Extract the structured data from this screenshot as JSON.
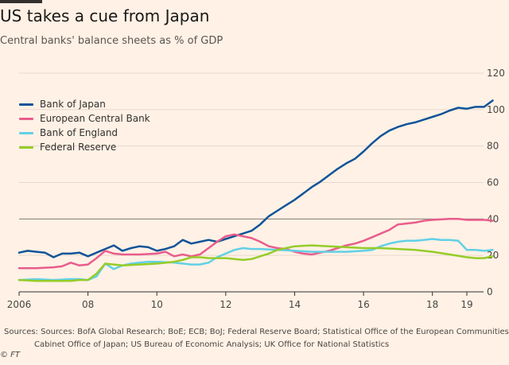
{
  "title": "US takes a cue from Japan",
  "subtitle": "Central banks' balance sheets as % of GDP",
  "sources": "Sources: Sources: BofA Global Research; BoE; ECB; BoJ; Federal Reserve Board; Statistical Office of the European Communities;\nCabinet Office of Japan; US Bureau of Economic Analysis; UK Office for National Statistics",
  "credit": "© FT",
  "colors": {
    "background": "#fff1e5",
    "grid": "#e6d9ce",
    "axis": "#33302e"
  },
  "chart_data": {
    "type": "line",
    "title": "US takes a cue from Japan",
    "subtitle": "Central banks' balance sheets as % of GDP",
    "xlabel": "",
    "ylabel": "",
    "xlim": [
      2006,
      2019.3
    ],
    "ylim": [
      0,
      120
    ],
    "x_ticks": [
      2006,
      2008,
      2010,
      2012,
      2014,
      2016,
      2018,
      2019
    ],
    "x_tick_labels": [
      "2006",
      "08",
      "10",
      "12",
      "14",
      "16",
      "18",
      "19"
    ],
    "y_ticks": [
      0,
      20,
      40,
      60,
      80,
      100,
      120
    ],
    "y_tick_labels": [
      "0",
      "20",
      "40",
      "60",
      "80",
      "100",
      "120"
    ],
    "y_axis_position": "right",
    "grid": true,
    "legend_position": "top-left",
    "series": [
      {
        "name": "Bank of Japan",
        "color": "#0f5499",
        "points": [
          [
            2006.0,
            21.5
          ],
          [
            2006.25,
            22.5
          ],
          [
            2006.5,
            22.0
          ],
          [
            2006.75,
            21.5
          ],
          [
            2007.0,
            19.0
          ],
          [
            2007.25,
            21.0
          ],
          [
            2007.5,
            21.0
          ],
          [
            2007.75,
            21.5
          ],
          [
            2008.0,
            19.5
          ],
          [
            2008.25,
            21.5
          ],
          [
            2008.5,
            23.5
          ],
          [
            2008.75,
            25.5
          ],
          [
            2009.0,
            22.5
          ],
          [
            2009.25,
            24.0
          ],
          [
            2009.5,
            25.0
          ],
          [
            2009.75,
            24.5
          ],
          [
            2010.0,
            22.5
          ],
          [
            2010.25,
            23.5
          ],
          [
            2010.5,
            25.0
          ],
          [
            2010.75,
            28.5
          ],
          [
            2011.0,
            26.5
          ],
          [
            2011.25,
            27.5
          ],
          [
            2011.5,
            28.5
          ],
          [
            2011.75,
            27.5
          ],
          [
            2012.0,
            29.0
          ],
          [
            2012.25,
            30.5
          ],
          [
            2012.5,
            32.0
          ],
          [
            2012.75,
            33.5
          ],
          [
            2013.0,
            37.0
          ],
          [
            2013.25,
            41.5
          ],
          [
            2013.5,
            44.5
          ],
          [
            2013.75,
            47.5
          ],
          [
            2014.0,
            50.5
          ],
          [
            2014.25,
            54.0
          ],
          [
            2014.5,
            57.5
          ],
          [
            2014.75,
            60.5
          ],
          [
            2015.0,
            64.0
          ],
          [
            2015.25,
            67.5
          ],
          [
            2015.5,
            70.5
          ],
          [
            2015.75,
            73.0
          ],
          [
            2016.0,
            77.0
          ],
          [
            2016.25,
            81.5
          ],
          [
            2016.5,
            85.5
          ],
          [
            2016.75,
            88.5
          ],
          [
            2017.0,
            90.5
          ],
          [
            2017.25,
            92.0
          ],
          [
            2017.5,
            93.0
          ],
          [
            2017.75,
            94.5
          ],
          [
            2018.0,
            96.0
          ],
          [
            2018.25,
            97.5
          ],
          [
            2018.5,
            99.5
          ],
          [
            2018.75,
            101.0
          ],
          [
            2019.0,
            100.5
          ],
          [
            2019.25,
            101.5
          ],
          [
            2019.5,
            101.5
          ],
          [
            2019.75,
            105.0
          ]
        ]
      },
      {
        "name": "European Central Bank",
        "color": "#e95d8c",
        "points": [
          [
            2006.0,
            13.0
          ],
          [
            2006.5,
            13.0
          ],
          [
            2007.0,
            13.5
          ],
          [
            2007.25,
            14.0
          ],
          [
            2007.5,
            16.0
          ],
          [
            2007.75,
            14.5
          ],
          [
            2008.0,
            15.0
          ],
          [
            2008.25,
            18.5
          ],
          [
            2008.5,
            22.5
          ],
          [
            2008.75,
            21.0
          ],
          [
            2009.0,
            20.5
          ],
          [
            2009.5,
            20.5
          ],
          [
            2010.0,
            21.0
          ],
          [
            2010.25,
            22.0
          ],
          [
            2010.5,
            19.5
          ],
          [
            2010.75,
            20.5
          ],
          [
            2011.0,
            19.5
          ],
          [
            2011.25,
            20.5
          ],
          [
            2011.5,
            24.0
          ],
          [
            2011.75,
            27.5
          ],
          [
            2012.0,
            30.5
          ],
          [
            2012.25,
            31.5
          ],
          [
            2012.5,
            30.5
          ],
          [
            2012.75,
            29.5
          ],
          [
            2013.0,
            27.5
          ],
          [
            2013.25,
            25.0
          ],
          [
            2013.5,
            24.0
          ],
          [
            2013.75,
            23.5
          ],
          [
            2014.0,
            22.0
          ],
          [
            2014.25,
            21.0
          ],
          [
            2014.5,
            20.5
          ],
          [
            2014.75,
            21.5
          ],
          [
            2015.0,
            22.5
          ],
          [
            2015.25,
            24.0
          ],
          [
            2015.5,
            25.5
          ],
          [
            2015.75,
            26.5
          ],
          [
            2016.0,
            28.0
          ],
          [
            2016.25,
            30.0
          ],
          [
            2016.5,
            32.0
          ],
          [
            2016.75,
            34.0
          ],
          [
            2017.0,
            37.0
          ],
          [
            2017.25,
            37.5
          ],
          [
            2017.5,
            38.0
          ],
          [
            2017.75,
            39.0
          ],
          [
            2018.0,
            39.5
          ],
          [
            2018.5,
            40.0
          ],
          [
            2018.75,
            40.0
          ],
          [
            2019.0,
            39.5
          ],
          [
            2019.5,
            39.5
          ],
          [
            2019.75,
            39.0
          ]
        ]
      },
      {
        "name": "Bank of England",
        "color": "#61d0e6",
        "points": [
          [
            2006.0,
            6.5
          ],
          [
            2006.5,
            7.0
          ],
          [
            2007.0,
            6.5
          ],
          [
            2007.5,
            7.0
          ],
          [
            2007.75,
            7.0
          ],
          [
            2008.0,
            6.5
          ],
          [
            2008.25,
            8.5
          ],
          [
            2008.5,
            15.5
          ],
          [
            2008.75,
            12.5
          ],
          [
            2009.0,
            14.5
          ],
          [
            2009.25,
            15.5
          ],
          [
            2009.5,
            16.0
          ],
          [
            2009.75,
            16.5
          ],
          [
            2010.0,
            16.5
          ],
          [
            2010.5,
            16.0
          ],
          [
            2011.0,
            15.0
          ],
          [
            2011.25,
            15.0
          ],
          [
            2011.5,
            16.0
          ],
          [
            2011.75,
            19.0
          ],
          [
            2012.0,
            21.0
          ],
          [
            2012.25,
            23.0
          ],
          [
            2012.5,
            24.0
          ],
          [
            2012.75,
            23.5
          ],
          [
            2013.0,
            23.5
          ],
          [
            2013.5,
            23.0
          ],
          [
            2014.0,
            22.5
          ],
          [
            2014.5,
            22.0
          ],
          [
            2015.0,
            22.0
          ],
          [
            2015.5,
            22.0
          ],
          [
            2016.0,
            22.5
          ],
          [
            2016.25,
            23.0
          ],
          [
            2016.5,
            25.0
          ],
          [
            2016.75,
            26.5
          ],
          [
            2017.0,
            27.5
          ],
          [
            2017.25,
            28.0
          ],
          [
            2017.5,
            28.0
          ],
          [
            2017.75,
            28.5
          ],
          [
            2018.0,
            29.0
          ],
          [
            2018.25,
            28.5
          ],
          [
            2018.5,
            28.5
          ],
          [
            2018.75,
            28.0
          ],
          [
            2019.0,
            23.0
          ],
          [
            2019.25,
            23.0
          ],
          [
            2019.5,
            22.5
          ],
          [
            2019.75,
            23.0
          ]
        ]
      },
      {
        "name": "Federal Reserve",
        "color": "#96cc28",
        "points": [
          [
            2006.0,
            6.5
          ],
          [
            2006.5,
            6.0
          ],
          [
            2007.0,
            6.0
          ],
          [
            2007.5,
            6.0
          ],
          [
            2007.75,
            6.5
          ],
          [
            2008.0,
            6.5
          ],
          [
            2008.25,
            10.0
          ],
          [
            2008.5,
            15.5
          ],
          [
            2008.75,
            15.0
          ],
          [
            2009.0,
            14.5
          ],
          [
            2009.5,
            15.0
          ],
          [
            2010.0,
            15.5
          ],
          [
            2010.5,
            16.5
          ],
          [
            2010.75,
            17.5
          ],
          [
            2011.0,
            19.0
          ],
          [
            2011.25,
            19.0
          ],
          [
            2011.5,
            18.5
          ],
          [
            2012.0,
            18.5
          ],
          [
            2012.25,
            18.0
          ],
          [
            2012.5,
            17.5
          ],
          [
            2012.75,
            18.0
          ],
          [
            2013.0,
            19.5
          ],
          [
            2013.25,
            21.0
          ],
          [
            2013.5,
            23.0
          ],
          [
            2013.75,
            24.0
          ],
          [
            2014.0,
            25.0
          ],
          [
            2014.5,
            25.5
          ],
          [
            2015.0,
            25.0
          ],
          [
            2015.5,
            24.5
          ],
          [
            2016.0,
            24.0
          ],
          [
            2016.5,
            24.0
          ],
          [
            2017.0,
            23.5
          ],
          [
            2017.5,
            23.0
          ],
          [
            2018.0,
            22.0
          ],
          [
            2018.5,
            20.5
          ],
          [
            2019.0,
            19.0
          ],
          [
            2019.25,
            18.5
          ],
          [
            2019.5,
            18.5
          ],
          [
            2019.75,
            19.5
          ]
        ]
      }
    ]
  }
}
